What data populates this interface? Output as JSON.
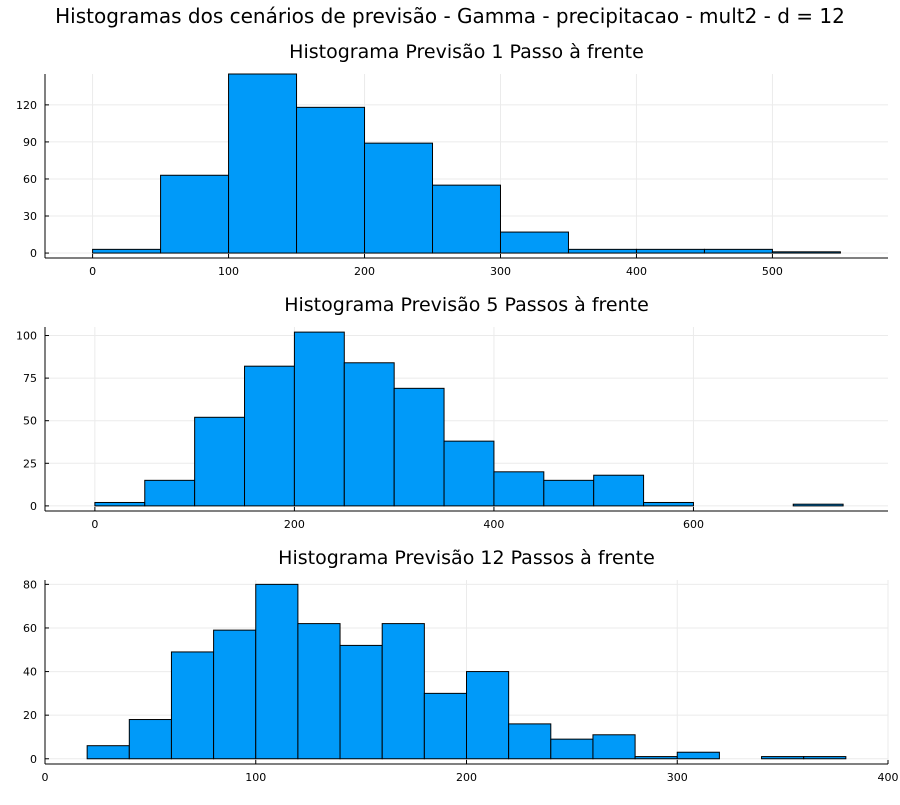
{
  "figure": {
    "title": "Histogramas dos cenários de previsão - Gamma - precipitacao - mult2 - d = 12"
  },
  "style": {
    "bar_color": "#009AF9",
    "bar_edge": "#000000",
    "grid_color": "#EBEBEB",
    "axis_color": "#000000"
  },
  "chart_data": [
    {
      "type": "bar",
      "title": "Histograma Previsão 1 Passo à frente",
      "xlabel": "",
      "ylabel": "",
      "xlim": [
        -35,
        585
      ],
      "ylim": [
        -4,
        145
      ],
      "xticks": [
        0,
        100,
        200,
        300,
        400,
        500
      ],
      "yticks": [
        0,
        30,
        60,
        90,
        120
      ],
      "grid": true,
      "legend": "none",
      "bins": [
        {
          "x0": 0,
          "x1": 50,
          "y": 3
        },
        {
          "x0": 50,
          "x1": 100,
          "y": 63
        },
        {
          "x0": 100,
          "x1": 150,
          "y": 145
        },
        {
          "x0": 150,
          "x1": 200,
          "y": 118
        },
        {
          "x0": 200,
          "x1": 250,
          "y": 89
        },
        {
          "x0": 250,
          "x1": 300,
          "y": 55
        },
        {
          "x0": 300,
          "x1": 350,
          "y": 17
        },
        {
          "x0": 350,
          "x1": 400,
          "y": 3
        },
        {
          "x0": 400,
          "x1": 450,
          "y": 3
        },
        {
          "x0": 450,
          "x1": 500,
          "y": 3
        },
        {
          "x0": 500,
          "x1": 550,
          "y": 1
        }
      ]
    },
    {
      "type": "bar",
      "title": "Histograma Previsão 5 Passos à frente",
      "xlabel": "",
      "ylabel": "",
      "xlim": [
        -50,
        795
      ],
      "ylim": [
        -3,
        105
      ],
      "xticks": [
        0,
        200,
        400,
        600
      ],
      "yticks": [
        0,
        25,
        50,
        75,
        100
      ],
      "grid": true,
      "legend": "none",
      "bins": [
        {
          "x0": 0,
          "x1": 50,
          "y": 2
        },
        {
          "x0": 50,
          "x1": 100,
          "y": 15
        },
        {
          "x0": 100,
          "x1": 150,
          "y": 52
        },
        {
          "x0": 150,
          "x1": 200,
          "y": 82
        },
        {
          "x0": 200,
          "x1": 250,
          "y": 102
        },
        {
          "x0": 250,
          "x1": 300,
          "y": 84
        },
        {
          "x0": 300,
          "x1": 350,
          "y": 69
        },
        {
          "x0": 350,
          "x1": 400,
          "y": 38
        },
        {
          "x0": 400,
          "x1": 450,
          "y": 20
        },
        {
          "x0": 450,
          "x1": 500,
          "y": 15
        },
        {
          "x0": 500,
          "x1": 550,
          "y": 18
        },
        {
          "x0": 550,
          "x1": 600,
          "y": 2
        },
        {
          "x0": 600,
          "x1": 650,
          "y": 0
        },
        {
          "x0": 650,
          "x1": 700,
          "y": 0
        },
        {
          "x0": 700,
          "x1": 750,
          "y": 1
        }
      ]
    },
    {
      "type": "bar",
      "title": "Histograma Previsão 12 Passos à frente",
      "xlabel": "",
      "ylabel": "",
      "xlim": [
        0,
        400
      ],
      "ylim": [
        -2.4,
        82
      ],
      "xticks": [
        0,
        100,
        200,
        300,
        400
      ],
      "yticks": [
        0,
        20,
        40,
        60,
        80
      ],
      "grid": true,
      "legend": "none",
      "bins": [
        {
          "x0": 20,
          "x1": 40,
          "y": 6
        },
        {
          "x0": 40,
          "x1": 60,
          "y": 18
        },
        {
          "x0": 60,
          "x1": 80,
          "y": 49
        },
        {
          "x0": 80,
          "x1": 100,
          "y": 59
        },
        {
          "x0": 100,
          "x1": 120,
          "y": 80
        },
        {
          "x0": 120,
          "x1": 140,
          "y": 62
        },
        {
          "x0": 140,
          "x1": 160,
          "y": 52
        },
        {
          "x0": 160,
          "x1": 180,
          "y": 62
        },
        {
          "x0": 180,
          "x1": 200,
          "y": 30
        },
        {
          "x0": 200,
          "x1": 220,
          "y": 40
        },
        {
          "x0": 220,
          "x1": 240,
          "y": 16
        },
        {
          "x0": 240,
          "x1": 260,
          "y": 9
        },
        {
          "x0": 260,
          "x1": 280,
          "y": 11
        },
        {
          "x0": 280,
          "x1": 300,
          "y": 1
        },
        {
          "x0": 300,
          "x1": 320,
          "y": 3
        },
        {
          "x0": 320,
          "x1": 340,
          "y": 0
        },
        {
          "x0": 340,
          "x1": 360,
          "y": 1
        },
        {
          "x0": 360,
          "x1": 380,
          "y": 1
        }
      ]
    }
  ]
}
